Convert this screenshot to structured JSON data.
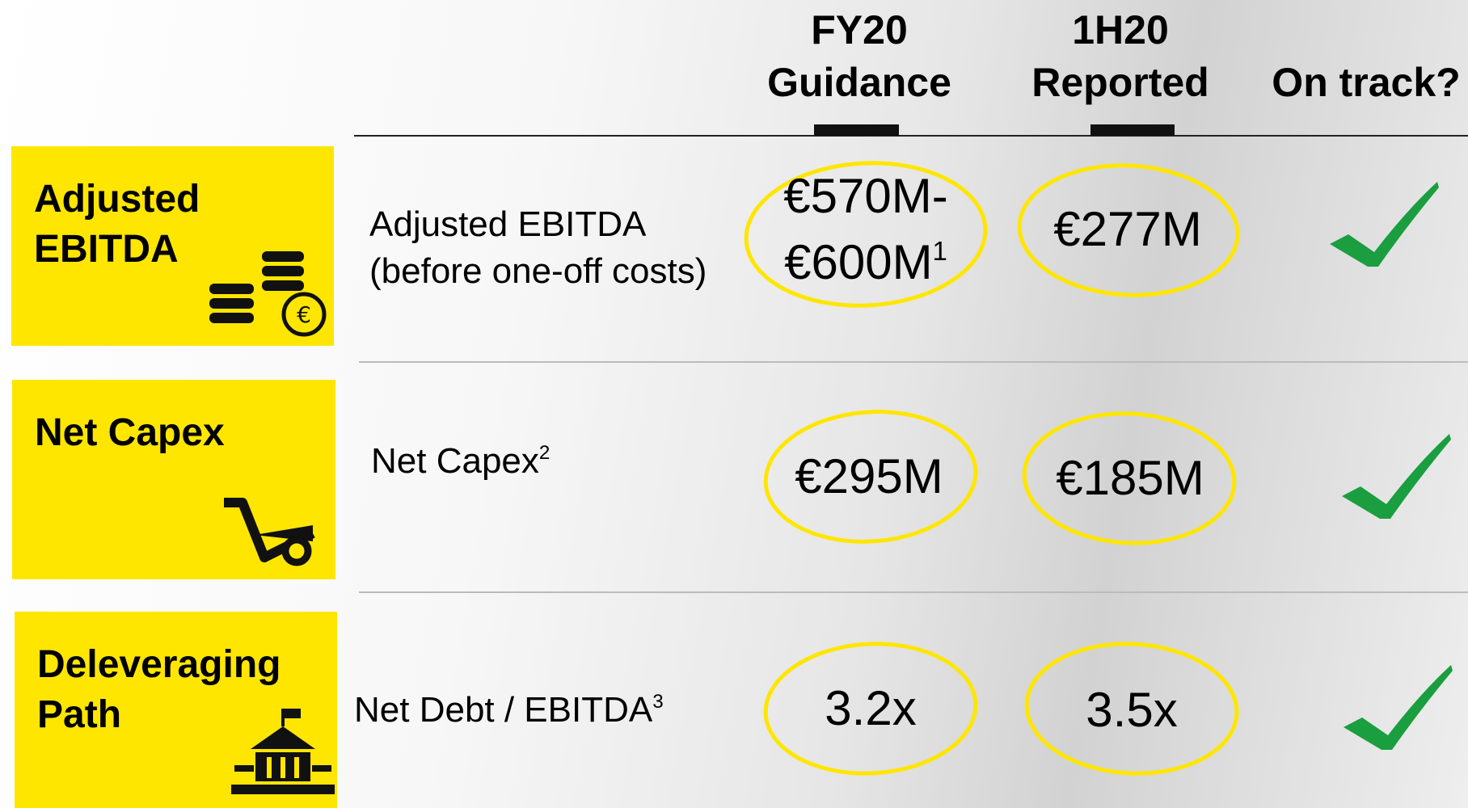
{
  "columns": [
    {
      "line1": "FY20",
      "line2": "Guidance"
    },
    {
      "line1": "1H20",
      "line2": "Reported"
    },
    {
      "line1": "On track?"
    }
  ],
  "rows": [
    {
      "tile": [
        "Adjusted",
        "EBITDA"
      ],
      "metric": [
        "Adjusted EBITDA",
        "(before one-off costs)"
      ],
      "guidance": [
        "€570M-",
        "€600M"
      ],
      "guidance_note": "1",
      "reported": "€277M"
    },
    {
      "tile": [
        "Net Capex"
      ],
      "metric": [
        "Net Capex"
      ],
      "metric_note": "2",
      "guidance": [
        "€295M"
      ],
      "reported": "€185M"
    },
    {
      "tile": [
        "Deleveraging",
        "Path"
      ],
      "metric": [
        "Net Debt / EBITDA"
      ],
      "metric_note": "3",
      "guidance": [
        "3.2x"
      ],
      "reported": "3.5x"
    }
  ]
}
